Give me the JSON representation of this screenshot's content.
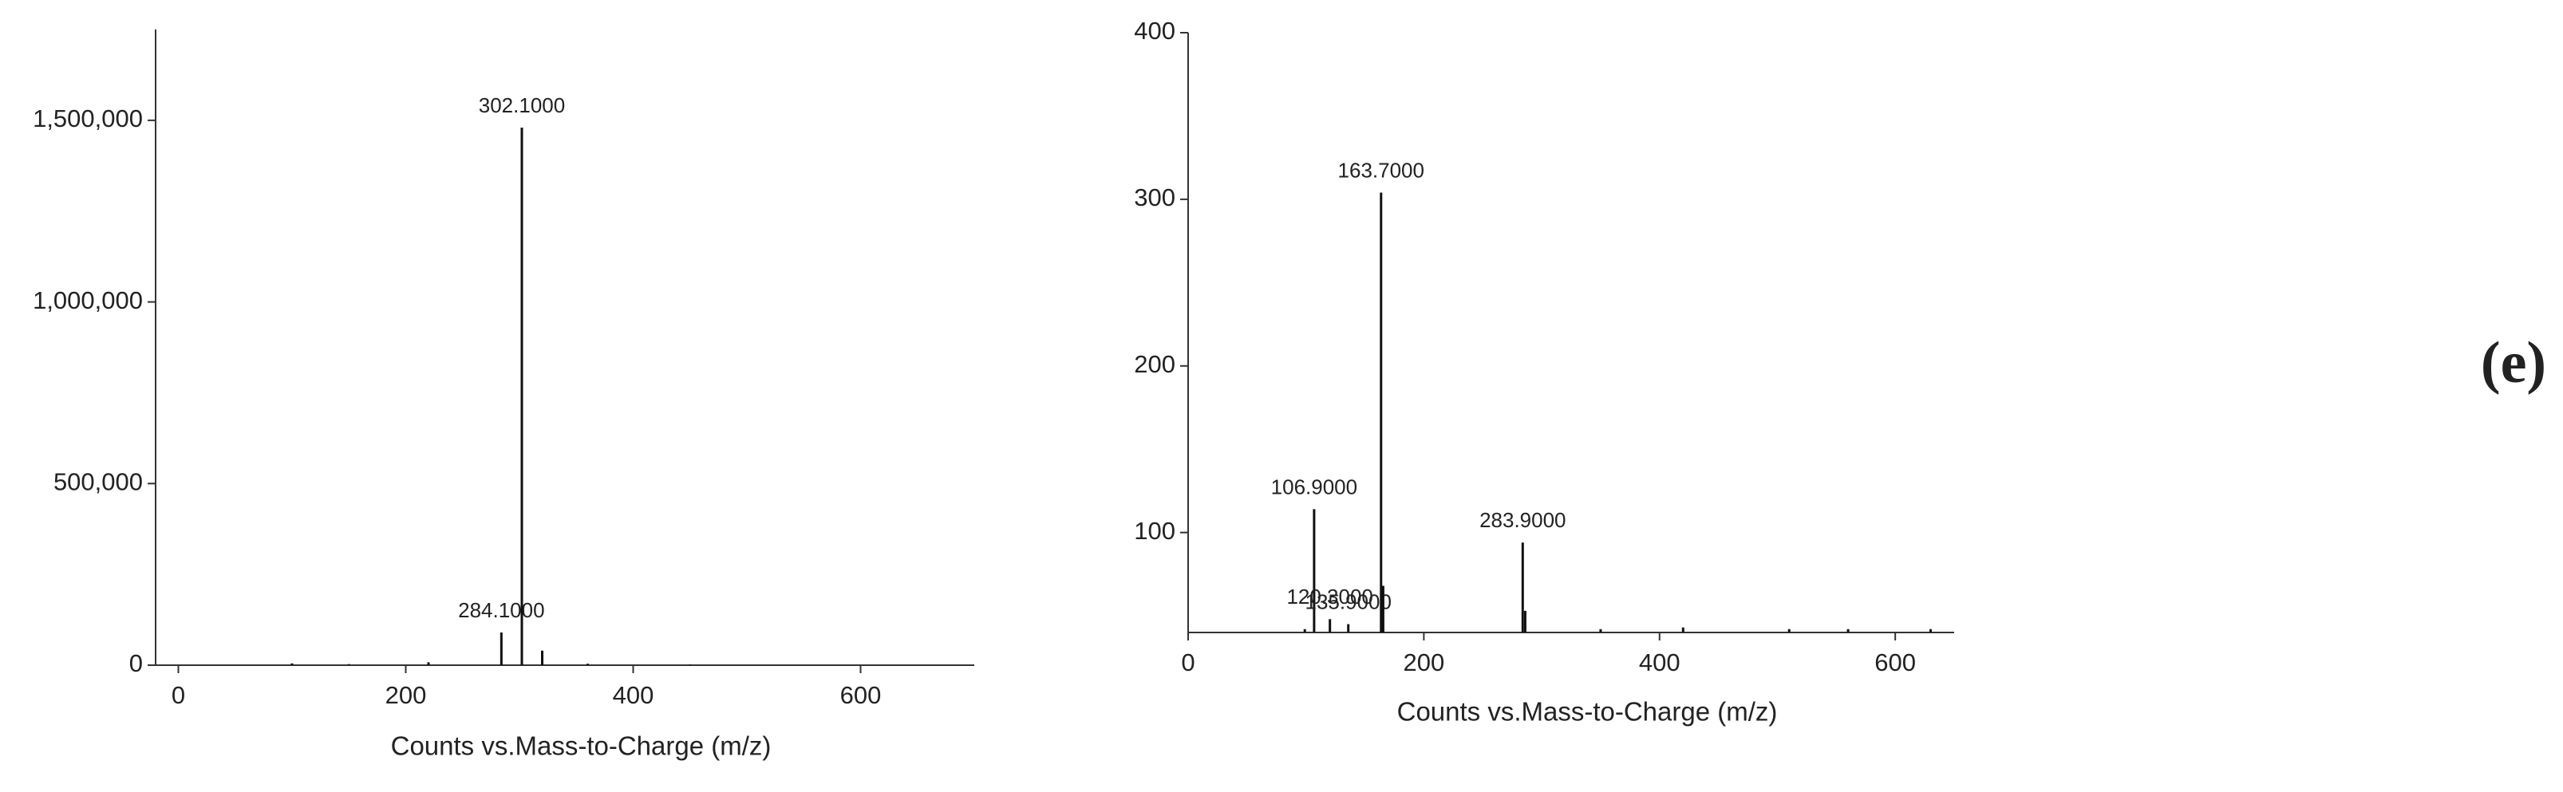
{
  "panel_label": "(e)",
  "chart_data": [
    {
      "type": "stem",
      "x_label": "Counts vs.Mass-to-Charge (m/z)",
      "x": [
        100,
        150,
        220,
        284.1,
        302.1,
        320,
        360,
        450
      ],
      "values": [
        5000,
        3000,
        8000,
        90000,
        1480000,
        40000,
        4000,
        2000
      ],
      "x_value_labels": [
        null,
        null,
        null,
        "284.1000",
        "302.1000",
        null,
        null,
        null
      ],
      "color": "#111111",
      "xlim": [
        -20,
        700
      ],
      "xticks": [
        0,
        200,
        400,
        600
      ],
      "ylim": [
        0,
        1750000
      ],
      "yticks": [
        0,
        {
          "value": 500000,
          "label": "500,000"
        },
        {
          "value": 1000000,
          "label": "1,000,000"
        },
        {
          "value": 1500000,
          "label": "1,500,000"
        }
      ]
    },
    {
      "type": "stem",
      "x_label": "Counts vs.Mass-to-Charge (m/z)",
      "x": [
        99,
        106.9,
        120.3,
        135.9,
        163.7,
        165.5,
        283.9,
        286,
        350,
        420,
        510,
        560,
        630
      ],
      "values": [
        42,
        114,
        48,
        45,
        304,
        68,
        94,
        53,
        42,
        43,
        42,
        42,
        42
      ],
      "x_value_labels": [
        null,
        "106.9000",
        "120.3000",
        "135.9000",
        "163.7000",
        null,
        "283.9000",
        null,
        null,
        null,
        null,
        null,
        null
      ],
      "color": "#111111",
      "xlim": [
        0,
        650
      ],
      "xticks": [
        0,
        200,
        400,
        600
      ],
      "ylim": [
        40,
        400
      ],
      "yticks": [
        100,
        200,
        300,
        400
      ]
    }
  ]
}
